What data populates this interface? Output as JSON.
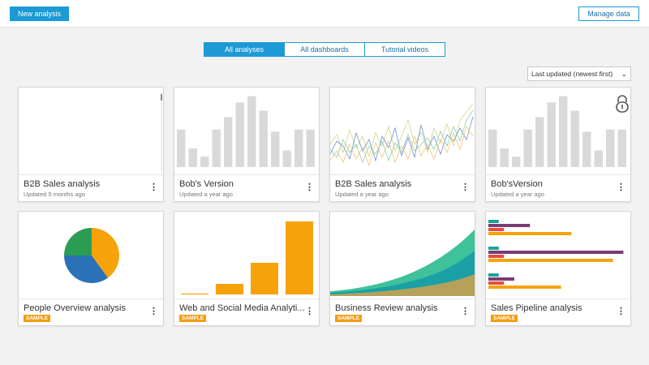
{
  "header": {
    "new_analysis_label": "New analysis",
    "manage_data_label": "Manage data"
  },
  "tabs": [
    {
      "label": "All analyses",
      "active": true
    },
    {
      "label": "All dashboards",
      "active": false
    },
    {
      "label": "Tutorial videos",
      "active": false
    }
  ],
  "sort": {
    "selected": "Last updated (newest first)"
  },
  "cards": [
    {
      "title": "B2B Sales analysis",
      "subtitle": "Updated 5 months ago",
      "thumbnail": "blank-scrollbar"
    },
    {
      "title": "Bob's Version",
      "subtitle": "Updated a year ago",
      "thumbnail": "gray-bar-chart"
    },
    {
      "title": "B2B Sales analysis",
      "subtitle": "Updated a year ago",
      "thumbnail": "multi-line-chart"
    },
    {
      "title": "Bob'sVersion",
      "subtitle": "Updated a year ago",
      "thumbnail": "gray-bar-chart-locked"
    },
    {
      "title": "People Overview analysis",
      "badge": "SAMPLE",
      "thumbnail": "pie-chart"
    },
    {
      "title": "Web and Social Media Analyti...",
      "badge": "SAMPLE",
      "thumbnail": "orange-bar-chart"
    },
    {
      "title": "Business Review analysis",
      "badge": "SAMPLE",
      "thumbnail": "stacked-area-chart"
    },
    {
      "title": "Sales Pipeline analysis",
      "badge": "SAMPLE",
      "thumbnail": "horizontal-bar-chart"
    }
  ],
  "icons": {
    "more": "kebab-menu-icon",
    "lock": "lock-icon",
    "chevron": "chevron-down-icon"
  },
  "colors": {
    "accent": "#1c9ad6",
    "badge": "#f39c12",
    "bar_gray": "#d9d9d9",
    "orange": "#f7a20a",
    "teal": "#1ba39c",
    "purple": "#7b3b73",
    "green": "#2a9d52",
    "blue": "#2a72b5",
    "olive": "#b5a15a"
  },
  "thumbnails": {
    "gray_bars": [
      3.6,
      1.8,
      1.0,
      3.6,
      4.8,
      6.2,
      6.8,
      5.4,
      3.4,
      1.6,
      3.6,
      3.6
    ],
    "orange_bars": [
      0.1,
      1.3,
      3.9,
      9.0
    ],
    "pie": [
      40,
      35,
      25
    ],
    "sales_pipeline": [
      {
        "values": [
          2,
          8,
          3,
          16
        ]
      },
      {
        "values": [
          2,
          26,
          3,
          24
        ]
      },
      {
        "values": [
          2,
          5,
          3,
          14
        ]
      }
    ]
  }
}
